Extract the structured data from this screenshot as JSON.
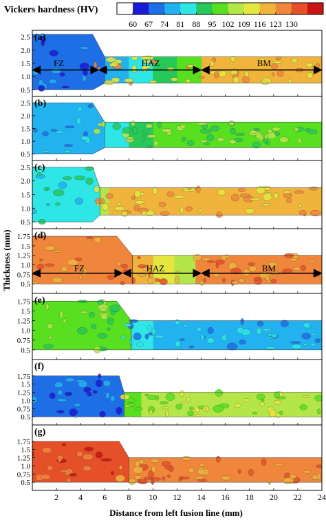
{
  "chart_data": {
    "type": "heatmap",
    "title": "Vickers hardness (HV)",
    "xlabel": "Distance from left fusion line (mm)",
    "ylabel": "Thickness (mm)",
    "xlim": [
      0,
      24
    ],
    "x_ticks": [
      "2",
      "4",
      "6",
      "8",
      "10",
      "12",
      "14",
      "16",
      "18",
      "20",
      "22",
      "24"
    ],
    "x_tick_values": [
      2,
      4,
      6,
      8,
      10,
      12,
      14,
      16,
      18,
      20,
      22,
      24
    ],
    "colorbar": {
      "levels": [
        60,
        67,
        74,
        81,
        88,
        95,
        102,
        109,
        116,
        123,
        130
      ],
      "labels": [
        "60",
        "67",
        "74",
        "81",
        "88",
        "95",
        "102",
        "109",
        "116",
        "123",
        "130"
      ],
      "colors": [
        "#ffffff",
        "#1a1ad6",
        "#1e6fe6",
        "#23b2f0",
        "#2ee6e6",
        "#27c85a",
        "#58e020",
        "#b4e64a",
        "#e6e640",
        "#f0b43c",
        "#f0863c",
        "#e65028",
        "#c81414"
      ]
    },
    "panels": [
      {
        "label": "(a)",
        "ylim": [
          0.25,
          2.75
        ],
        "y_ticks": [
          "0.5",
          "1.0",
          "1.5",
          "2.0",
          "2.5"
        ],
        "y_tick_values": [
          0.5,
          1.0,
          1.5,
          2.0,
          2.5
        ],
        "fz_end": 5,
        "neck_end": 6,
        "haz_end": 14,
        "fz_thick": [
          0.5,
          2.6
        ],
        "plate_thick": [
          0.75,
          1.75
        ],
        "fz_color": "#1e6fe6",
        "haz_colors": [
          "#23b2f0",
          "#2ee6e6",
          "#27c85a",
          "#58e020"
        ],
        "bm_color": "#f0b43c",
        "zone_labels": [
          {
            "text": "FZ",
            "x": 2.2,
            "y": 1.5
          },
          {
            "text": "HAZ",
            "x": 9.8,
            "y": 1.5
          },
          {
            "text": "BM",
            "x": 19.2,
            "y": 1.5
          }
        ],
        "arrow_y": 1.25,
        "arrow_segments": [
          [
            0,
            5.5
          ],
          [
            5.5,
            14
          ],
          [
            14,
            24
          ]
        ]
      },
      {
        "label": "(b)",
        "ylim": [
          0.25,
          2.75
        ],
        "y_ticks": [
          "0.5",
          "1.0",
          "1.5",
          "2.0",
          "2.5"
        ],
        "y_tick_values": [
          0.5,
          1.0,
          1.5,
          2.0,
          2.5
        ],
        "fz_end": 5,
        "neck_end": 6,
        "haz_end": 10,
        "fz_thick": [
          0.5,
          2.5
        ],
        "plate_thick": [
          0.75,
          1.75
        ],
        "fz_color": "#23b2f0",
        "haz_colors": [
          "#2ee6e6",
          "#27c85a"
        ],
        "bm_color": "#58e020"
      },
      {
        "label": "(c)",
        "ylim": [
          0.25,
          2.75
        ],
        "y_ticks": [
          "0.5",
          "1.0",
          "1.5",
          "2.0",
          "2.5"
        ],
        "y_tick_values": [
          0.5,
          1.0,
          1.5,
          2.0,
          2.5
        ],
        "fz_end": 5,
        "neck_end": 5.6,
        "haz_end": 6.3,
        "fz_thick": [
          0.5,
          2.5
        ],
        "plate_thick": [
          0.75,
          1.75
        ],
        "fz_color": "#2ee6e6",
        "haz_colors": [
          "#b4e64a"
        ],
        "bm_color": "#f0b43c"
      },
      {
        "label": "(d)",
        "ylim": [
          0.25,
          1.95
        ],
        "y_ticks": [
          "0.5",
          "0.75",
          "1.0",
          "1.25",
          "1.5",
          "1.75"
        ],
        "y_tick_values": [
          0.5,
          0.75,
          1.0,
          1.25,
          1.5,
          1.75
        ],
        "fz_end": 7,
        "neck_end": 8.3,
        "haz_end": 13.5,
        "fz_thick": [
          0.5,
          1.75
        ],
        "plate_thick": [
          0.5,
          1.25
        ],
        "fz_color": "#f0863c",
        "haz_colors": [
          "#f0b43c",
          "#e6e640",
          "#b4e64a"
        ],
        "bm_color": "#f0863c",
        "zone_labels": [
          {
            "text": "FZ",
            "x": 3.9,
            "y": 0.9
          },
          {
            "text": "HAZ",
            "x": 10.2,
            "y": 0.9
          },
          {
            "text": "BM",
            "x": 19.6,
            "y": 0.9
          }
        ],
        "arrow_y": 0.78,
        "arrow_segments": [
          [
            0,
            7.5
          ],
          [
            7.5,
            14
          ],
          [
            14,
            24
          ]
        ]
      },
      {
        "label": "(e)",
        "ylim": [
          0.25,
          1.95
        ],
        "y_ticks": [
          "0.5",
          "0.75",
          "1.0",
          "1.25",
          "1.5",
          "1.75"
        ],
        "y_tick_values": [
          0.5,
          0.75,
          1.0,
          1.25,
          1.5,
          1.75
        ],
        "fz_end": 7,
        "neck_end": 8.2,
        "haz_end": 10,
        "fz_thick": [
          0.5,
          1.75
        ],
        "plate_thick": [
          0.5,
          1.25
        ],
        "fz_color": "#58e020",
        "haz_colors": [
          "#2ee6e6"
        ],
        "bm_color": "#23b2f0"
      },
      {
        "label": "(f)",
        "ylim": [
          0.25,
          2.25
        ],
        "y_ticks": [
          "0.5",
          "0.75",
          "1.0",
          "1.25",
          "1.5",
          "1.75"
        ],
        "y_tick_values": [
          0.5,
          0.75,
          1.0,
          1.25,
          1.5,
          1.75
        ],
        "fz_end": 7.2,
        "neck_end": 7.6,
        "haz_end": 9,
        "fz_thick": [
          0.5,
          1.75
        ],
        "plate_thick": [
          0.5,
          1.25
        ],
        "fz_color": "#1e6fe6",
        "haz_colors": [
          "#58e020"
        ],
        "bm_color": "#b4e64a"
      },
      {
        "label": "(g)",
        "ylim": [
          0.25,
          2.25
        ],
        "y_ticks": [
          "0.5",
          "0.75",
          "1.0",
          "1.25",
          "1.5",
          "1.75"
        ],
        "y_tick_values": [
          0.5,
          0.75,
          1.0,
          1.25,
          1.5,
          1.75
        ],
        "fz_end": 7.2,
        "neck_end": 8,
        "haz_end": 10,
        "fz_thick": [
          0.5,
          1.75
        ],
        "plate_thick": [
          0.5,
          1.25
        ],
        "fz_color": "#e65028",
        "haz_colors": [
          "#f0863c"
        ],
        "bm_color": "#f0863c"
      }
    ]
  }
}
